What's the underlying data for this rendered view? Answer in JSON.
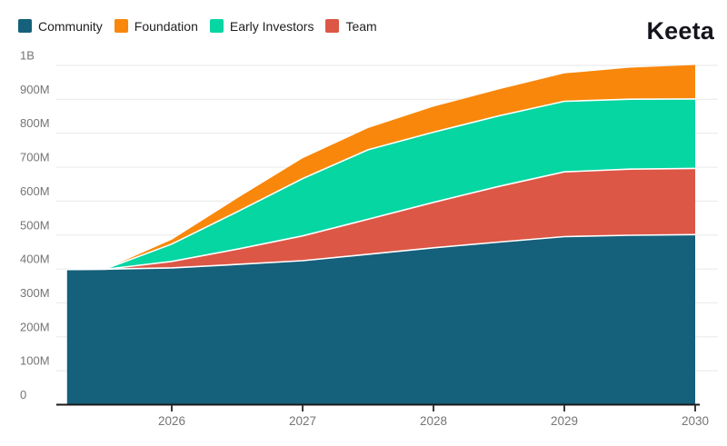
{
  "header": {
    "logo": "Keeta"
  },
  "legend": {
    "items": [
      {
        "label": "Community",
        "color": "#15607b"
      },
      {
        "label": "Foundation",
        "color": "#f8870b"
      },
      {
        "label": "Early Investors",
        "color": "#05d6a2"
      },
      {
        "label": "Team",
        "color": "#dc5746"
      }
    ]
  },
  "chart_data": {
    "type": "area",
    "stacked": true,
    "title": "",
    "xlabel": "",
    "ylabel": "",
    "unit": "tokens (millions)",
    "grid": true,
    "legend_position": "top-left",
    "x": [
      2025.2,
      2025.5,
      2026,
      2026.5,
      2027,
      2027.5,
      2028,
      2028.5,
      2029,
      2029.5,
      2030
    ],
    "series": [
      {
        "name": "Community",
        "color": "#15607b",
        "values": [
          397,
          398,
          402,
          412,
          423,
          442,
          461,
          478,
          494,
          498,
          500
        ]
      },
      {
        "name": "Team",
        "color": "#dc5746",
        "values": [
          0,
          0,
          19,
          45,
          73,
          103,
          134,
          164,
          191,
          195,
          195
        ]
      },
      {
        "name": "Early Investors",
        "color": "#05d6a2",
        "values": [
          0,
          2,
          51,
          110,
          169,
          205,
          207,
          208,
          208,
          206,
          205
        ]
      },
      {
        "name": "Foundation",
        "color": "#f8870b",
        "values": [
          0,
          0,
          13,
          40,
          60,
          64,
          75,
          78,
          82,
          93,
          100
        ]
      }
    ],
    "stack_order_bottom_to_top": [
      "Community",
      "Team",
      "Early Investors",
      "Foundation"
    ],
    "x_ticks": [
      2026,
      2027,
      2028,
      2029,
      2030
    ],
    "y_ticks": [
      {
        "value": 0,
        "label": "0"
      },
      {
        "value": 100,
        "label": "100M"
      },
      {
        "value": 200,
        "label": "200M"
      },
      {
        "value": 300,
        "label": "300M"
      },
      {
        "value": 400,
        "label": "400M"
      },
      {
        "value": 500,
        "label": "500M"
      },
      {
        "value": 600,
        "label": "600M"
      },
      {
        "value": 700,
        "label": "700M"
      },
      {
        "value": 800,
        "label": "800M"
      },
      {
        "value": 900,
        "label": "900M"
      },
      {
        "value": 1000,
        "label": "1B"
      }
    ],
    "xlim": [
      2025.2,
      2030
    ],
    "ylim": [
      0,
      1000
    ]
  },
  "colors": {
    "grid": "#ececec",
    "axis": "#1a1a1a",
    "tick_label": "#757575",
    "band_separator": "#ffffff",
    "background": "#ffffff"
  }
}
